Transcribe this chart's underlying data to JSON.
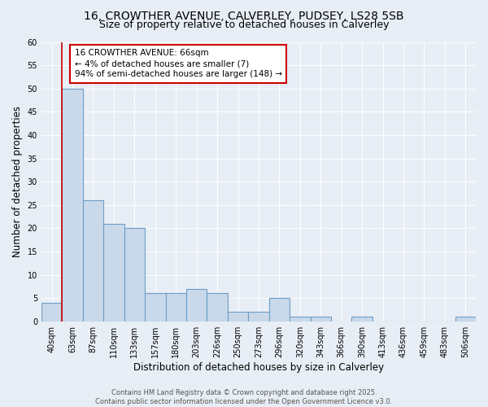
{
  "title_line1": "16, CROWTHER AVENUE, CALVERLEY, PUDSEY, LS28 5SB",
  "title_line2": "Size of property relative to detached houses in Calverley",
  "xlabel": "Distribution of detached houses by size in Calverley",
  "ylabel": "Number of detached properties",
  "categories": [
    "40sqm",
    "63sqm",
    "87sqm",
    "110sqm",
    "133sqm",
    "157sqm",
    "180sqm",
    "203sqm",
    "226sqm",
    "250sqm",
    "273sqm",
    "296sqm",
    "320sqm",
    "343sqm",
    "366sqm",
    "390sqm",
    "413sqm",
    "436sqm",
    "459sqm",
    "483sqm",
    "506sqm"
  ],
  "values": [
    4,
    50,
    26,
    21,
    20,
    6,
    6,
    7,
    6,
    2,
    2,
    5,
    1,
    1,
    0,
    1,
    0,
    0,
    0,
    0,
    1
  ],
  "bar_color": "#c9d9ea",
  "bar_edge_color": "#6b9ec7",
  "bar_edge_width": 0.8,
  "property_line_color": "#cc0000",
  "annotation_text": "16 CROWTHER AVENUE: 66sqm\n← 4% of detached houses are smaller (7)\n94% of semi-detached houses are larger (148) →",
  "annotation_box_color": "#ffffff",
  "annotation_box_edge": "#cc0000",
  "ylim": [
    0,
    60
  ],
  "yticks": [
    0,
    5,
    10,
    15,
    20,
    25,
    30,
    35,
    40,
    45,
    50,
    55,
    60
  ],
  "background_color": "#e8eef5",
  "footer_text": "Contains HM Land Registry data © Crown copyright and database right 2025.\nContains public sector information licensed under the Open Government Licence v3.0.",
  "title_fontsize": 10,
  "subtitle_fontsize": 9,
  "tick_fontsize": 7,
  "label_fontsize": 8.5,
  "annotation_fontsize": 7.5,
  "footer_fontsize": 6
}
